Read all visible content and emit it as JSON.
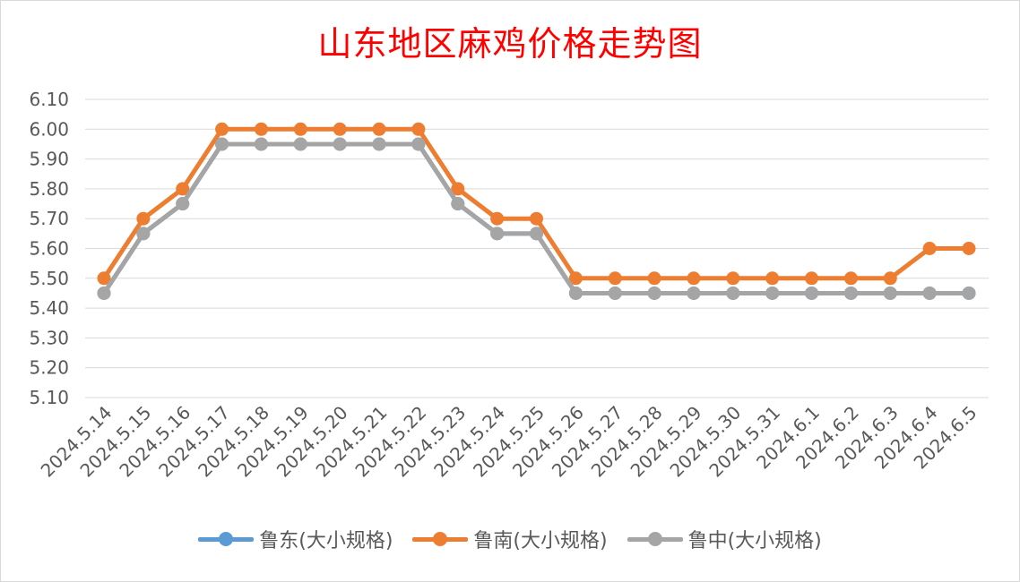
{
  "chart_data": {
    "type": "line",
    "title": "山东地区麻鸡价格走势图",
    "categories": [
      "2024.5.14",
      "2024.5.15",
      "2024.5.16",
      "2024.5.17",
      "2024.5.18",
      "2024.5.19",
      "2024.5.20",
      "2024.5.21",
      "2024.5.22",
      "2024.5.23",
      "2024.5.24",
      "2024.5.25",
      "2024.5.26",
      "2024.5.27",
      "2024.5.28",
      "2024.5.29",
      "2024.5.30",
      "2024.5.31",
      "2024.6.1",
      "2024.6.2",
      "2024.6.3",
      "2024.6.4",
      "2024.6.5"
    ],
    "series": [
      {
        "name": "鲁东(大小规格)",
        "color": "#5b9bd5",
        "values": [
          5.45,
          5.65,
          5.75,
          5.95,
          5.95,
          5.95,
          5.95,
          5.95,
          5.95,
          5.75,
          5.65,
          5.65,
          5.45,
          5.45,
          5.45,
          5.45,
          5.45,
          5.45,
          5.45,
          5.45,
          5.45,
          5.45,
          5.45
        ]
      },
      {
        "name": "鲁南(大小规格)",
        "color": "#ed7d31",
        "values": [
          5.5,
          5.7,
          5.8,
          6.0,
          6.0,
          6.0,
          6.0,
          6.0,
          6.0,
          5.8,
          5.7,
          5.7,
          5.5,
          5.5,
          5.5,
          5.5,
          5.5,
          5.5,
          5.5,
          5.5,
          5.5,
          5.6,
          5.6
        ]
      },
      {
        "name": "鲁中(大小规格)",
        "color": "#a5a5a5",
        "values": [
          5.45,
          5.65,
          5.75,
          5.95,
          5.95,
          5.95,
          5.95,
          5.95,
          5.95,
          5.75,
          5.65,
          5.65,
          5.45,
          5.45,
          5.45,
          5.45,
          5.45,
          5.45,
          5.45,
          5.45,
          5.45,
          5.45,
          5.45
        ]
      }
    ],
    "ylim": [
      5.1,
      6.1
    ],
    "yticks": [
      "6.10",
      "6.00",
      "5.90",
      "5.80",
      "5.70",
      "5.60",
      "5.50",
      "5.40",
      "5.30",
      "5.20",
      "5.10"
    ],
    "xlabel": "",
    "ylabel": "",
    "grid": true,
    "legend": "bottom"
  }
}
